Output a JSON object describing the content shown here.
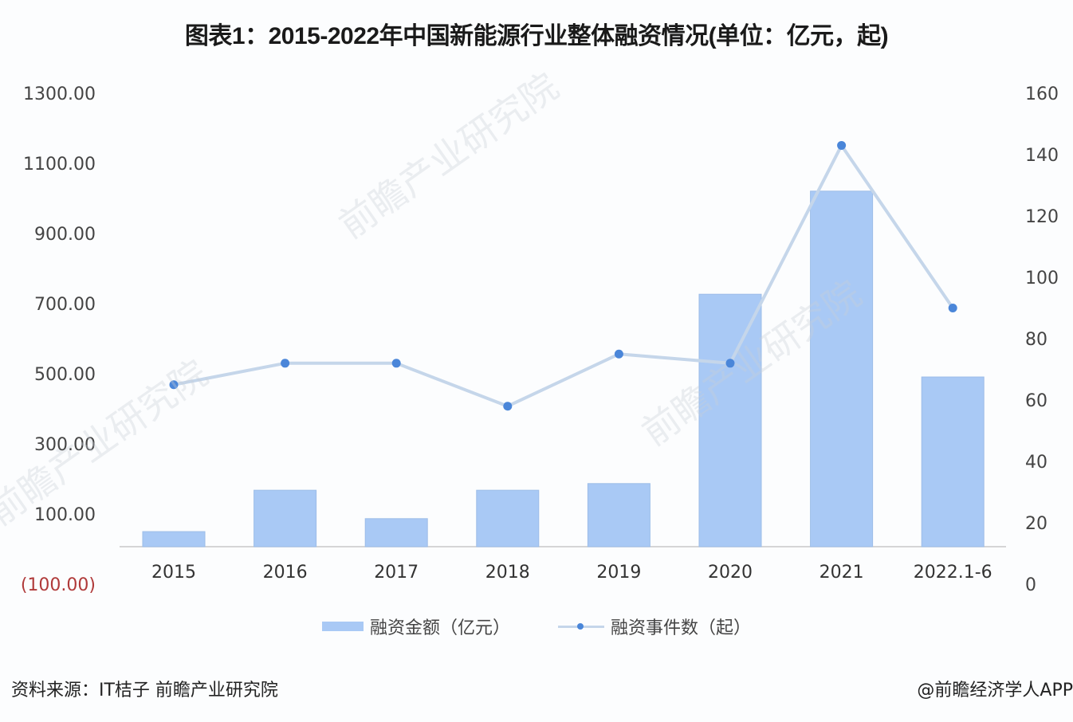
{
  "title": "图表1：2015-2022年中国新能源行业整体融资情况(单位：亿元，起)",
  "chart_data": {
    "type": "bar+line",
    "title": "图表1：2015-2022年中国新能源行业整体融资情况(单位：亿元，起)",
    "categories": [
      "2015",
      "2016",
      "2017",
      "2018",
      "2019",
      "2020",
      "2021",
      "2022.1-6"
    ],
    "series": [
      {
        "name": "融资金额（亿元）",
        "type": "bar",
        "axis": "left",
        "color": "#a9c9f5",
        "values": [
          43,
          161,
          80,
          161,
          180,
          720,
          1014,
          484
        ]
      },
      {
        "name": "融资事件数（起）",
        "type": "line",
        "axis": "right",
        "color": "#c5d6ea",
        "marker_color": "#4a86d9",
        "values": [
          65,
          72,
          72,
          58,
          75,
          72,
          143,
          90
        ]
      }
    ],
    "left_axis": {
      "ticks": [
        "1300.00",
        "1100.00",
        "900.00",
        "700.00",
        "500.00",
        "300.00",
        "100.00",
        "(100.00)"
      ],
      "tick_values": [
        1300,
        1100,
        900,
        700,
        500,
        300,
        100,
        -100
      ],
      "negative_color": "#b03a3a",
      "ylim": [
        -100,
        1300
      ]
    },
    "right_axis": {
      "ticks": [
        "160",
        "140",
        "120",
        "100",
        "80",
        "60",
        "40",
        "20",
        "0"
      ],
      "tick_values": [
        160,
        140,
        120,
        100,
        80,
        60,
        40,
        20,
        0
      ],
      "ylim": [
        0,
        160
      ]
    },
    "grid": false,
    "legend_position": "bottom"
  },
  "legend": {
    "bar_label": "融资金额（亿元）",
    "line_label": "融资事件数（起）"
  },
  "footer": {
    "source": "资料来源：IT桔子 前瞻产业研究院",
    "credit": "@前瞻经济学人APP"
  },
  "watermarks": [
    "前瞻产业研究院",
    "前瞻产业研究院",
    "前瞻产业研究院"
  ]
}
